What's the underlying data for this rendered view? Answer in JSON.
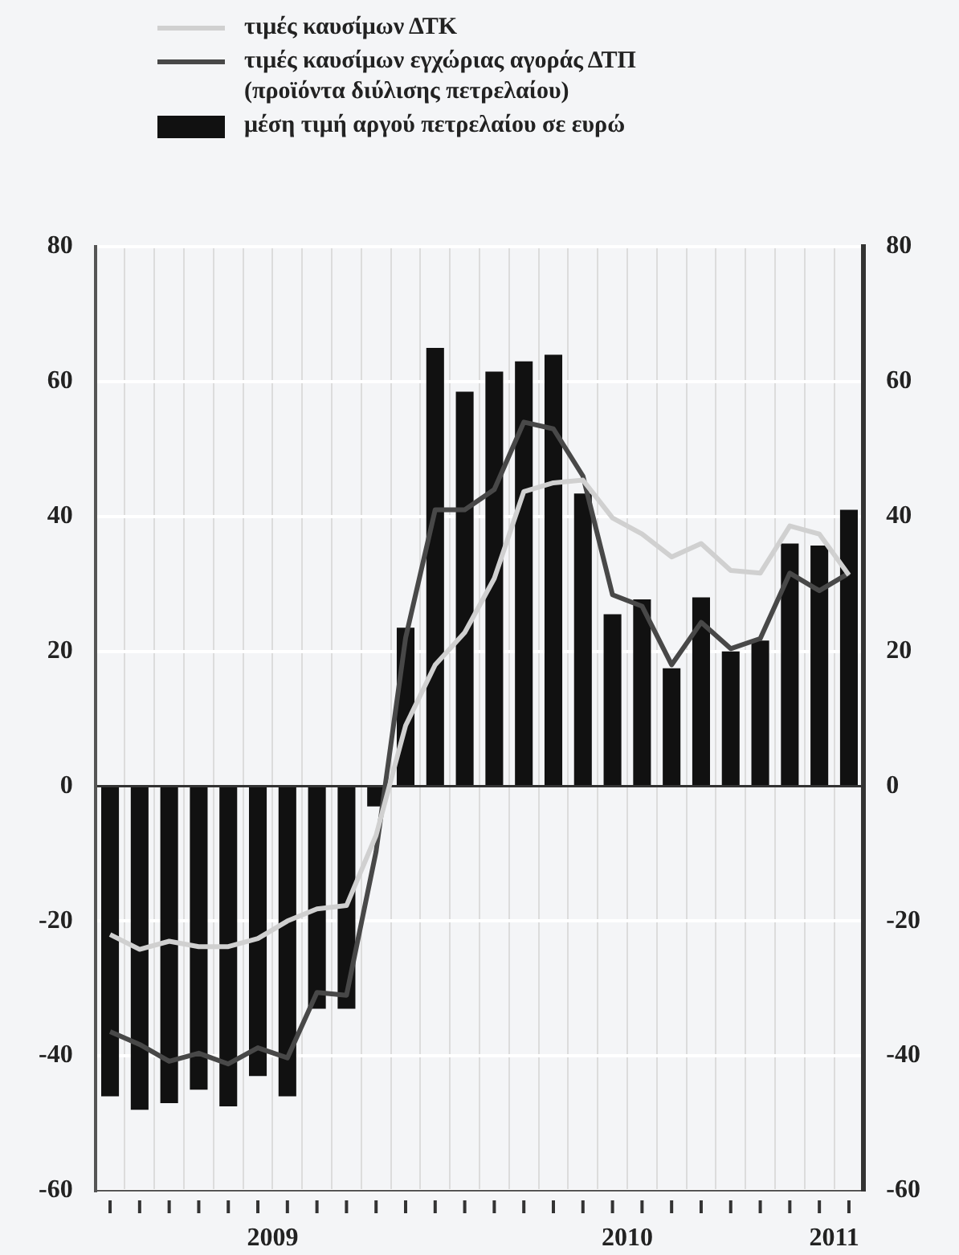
{
  "chart_data": {
    "type": "bar",
    "categories": [
      null,
      null,
      null,
      null,
      null,
      null,
      null,
      null,
      null,
      null,
      null,
      null,
      null,
      null,
      null,
      null,
      null,
      null,
      null,
      null,
      null,
      null,
      null,
      null,
      null,
      null
    ],
    "series": [
      {
        "name": "τιμές καυσίμων ΔΤΚ",
        "type": "line",
        "color": "#d0d0d0",
        "values": [
          -22,
          -24.2,
          -23,
          -23.8,
          -23.8,
          -22.6,
          -20,
          -18.2,
          -17.7,
          -7.3,
          9,
          18,
          22.8,
          30.8,
          43.7,
          45,
          45.4,
          39.8,
          37.4,
          34,
          36,
          32,
          31.6,
          38.6,
          37.4,
          31.3
        ]
      },
      {
        "name": "τιμές καυσίμων εγχώριας αγοράς ΔΤΠ (προϊόντα διύλισης πετρελαίου)",
        "type": "line",
        "color": "#484848",
        "values": [
          -36.4,
          -38.3,
          -40.8,
          -39.6,
          -41.2,
          -38.8,
          -40.3,
          -30.6,
          -31,
          -9.7,
          22,
          41,
          41,
          44,
          54,
          53,
          46,
          28.4,
          26.7,
          18,
          24.3,
          20.4,
          21.9,
          31.6,
          29,
          31.6
        ]
      },
      {
        "name": "μέση τιμή αργού πετρελαίου σε ευρώ",
        "color": "#111111",
        "values": [
          -46,
          -48,
          -47,
          -45,
          -47.5,
          -43,
          -46,
          -33,
          -33,
          -3,
          23.5,
          65,
          58.5,
          61.5,
          63,
          64,
          43.4,
          25.5,
          27.7,
          17.5,
          28,
          20,
          21.6,
          36,
          35.7,
          41
        ]
      }
    ],
    "ylim": [
      -60,
      80
    ],
    "yticks": [
      -60,
      -40,
      -20,
      0,
      20,
      40,
      60,
      80
    ],
    "y2lim": [
      -60,
      80
    ],
    "y2ticks": [
      -60,
      -40,
      -20,
      0,
      20,
      40,
      60,
      80
    ],
    "annotations": [
      "2009",
      "2010",
      "2011"
    ],
    "grid": true,
    "legend": "top left",
    "marker": "none"
  }
}
